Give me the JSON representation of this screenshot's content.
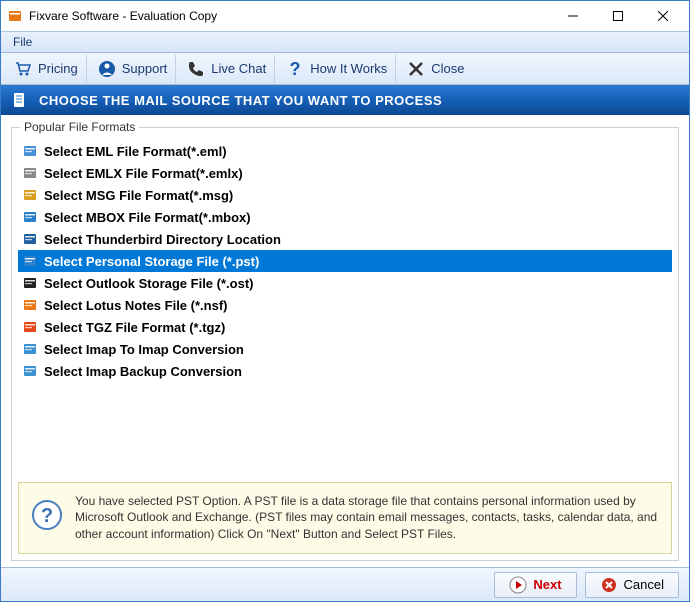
{
  "window": {
    "title": "Fixvare Software - Evaluation Copy"
  },
  "menubar": {
    "file": "File"
  },
  "toolbar": {
    "pricing": "Pricing",
    "support": "Support",
    "livechat": "Live Chat",
    "howitworks": "How It Works",
    "close": "Close"
  },
  "banner": {
    "text": "CHOOSE THE MAIL SOURCE THAT YOU WANT TO PROCESS"
  },
  "group_label": "Popular File Formats",
  "formats": [
    {
      "label": "Select EML File Format(*.eml)",
      "icon_color": "#4a90d8",
      "selected": false
    },
    {
      "label": "Select EMLX File Format(*.emlx)",
      "icon_color": "#888",
      "selected": false
    },
    {
      "label": "Select MSG File Format(*.msg)",
      "icon_color": "#d8a020",
      "selected": false
    },
    {
      "label": "Select MBOX File Format(*.mbox)",
      "icon_color": "#2a80c8",
      "selected": false
    },
    {
      "label": "Select Thunderbird Directory Location",
      "icon_color": "#2060a0",
      "selected": false
    },
    {
      "label": "Select Personal Storage File (*.pst)",
      "icon_color": "#2a80c8",
      "selected": true
    },
    {
      "label": "Select Outlook Storage File (*.ost)",
      "icon_color": "#222",
      "selected": false
    },
    {
      "label": "Select Lotus Notes File (*.nsf)",
      "icon_color": "#e87818",
      "selected": false
    },
    {
      "label": "Select TGZ File Format (*.tgz)",
      "icon_color": "#e84818",
      "selected": false
    },
    {
      "label": "Select Imap To Imap Conversion",
      "icon_color": "#3a90d0",
      "selected": false
    },
    {
      "label": "Select Imap Backup Conversion",
      "icon_color": "#3a90d0",
      "selected": false
    }
  ],
  "info": {
    "text": "You have selected PST Option. A PST file is a data storage file that contains personal information used by Microsoft Outlook and Exchange. (PST files may contain email messages, contacts, tasks, calendar data, and other account information) Click On \"Next\" Button and Select PST Files."
  },
  "footer": {
    "next": "Next",
    "cancel": "Cancel"
  },
  "colors": {
    "accent_blue": "#0078d7",
    "banner_top": "#2a7ad0",
    "banner_bottom": "#0d4890",
    "info_bg": "#fdfce7",
    "info_border": "#d8d4a0",
    "next_color": "#c00000"
  }
}
